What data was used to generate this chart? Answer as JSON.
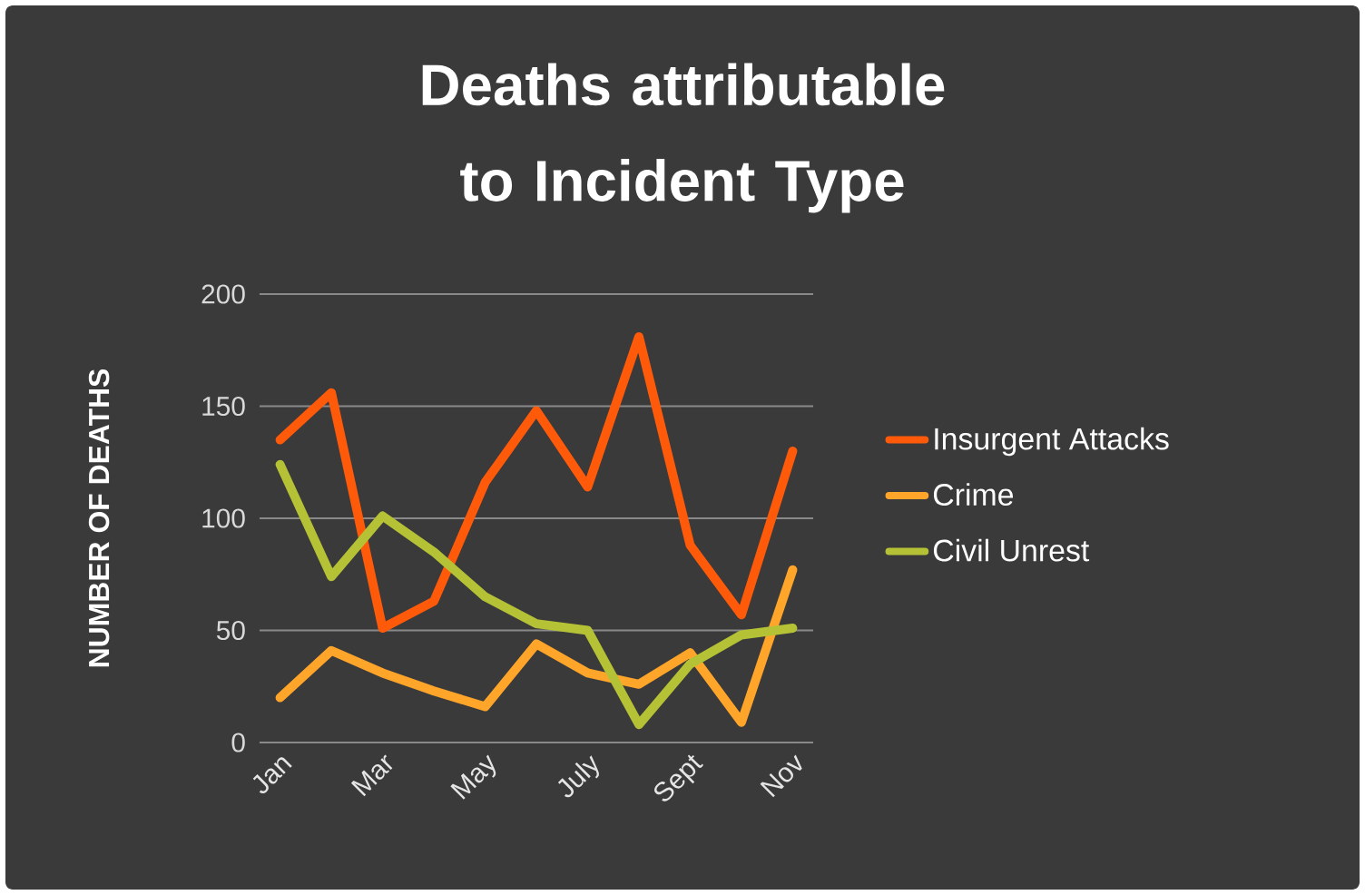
{
  "chart_data": {
    "type": "line",
    "title": "Deaths attributable to Incident Type",
    "ylabel": "NUMBER OF DEATHS",
    "categories": [
      "Jan",
      null,
      "Mar",
      null,
      "May",
      null,
      "July",
      null,
      "Sept",
      null,
      "Nov"
    ],
    "series": [
      {
        "name": "Insurgent Attacks",
        "color": "#ff5a0a",
        "values": [
          135,
          156,
          51,
          63,
          116,
          148,
          114,
          181,
          88,
          57,
          130
        ]
      },
      {
        "name": "Crime",
        "color": "#ffa52a",
        "values": [
          20,
          41,
          31,
          23,
          16,
          44,
          31,
          26,
          40,
          9,
          77
        ]
      },
      {
        "name": "Civil Unrest",
        "color": "#b5c235",
        "values": [
          124,
          74,
          101,
          85,
          65,
          53,
          50,
          8,
          35,
          48,
          51
        ]
      }
    ],
    "ylim": [
      0,
      200
    ],
    "yticks": [
      0,
      50,
      100,
      150,
      200
    ],
    "grid": "y",
    "legend": "right"
  }
}
